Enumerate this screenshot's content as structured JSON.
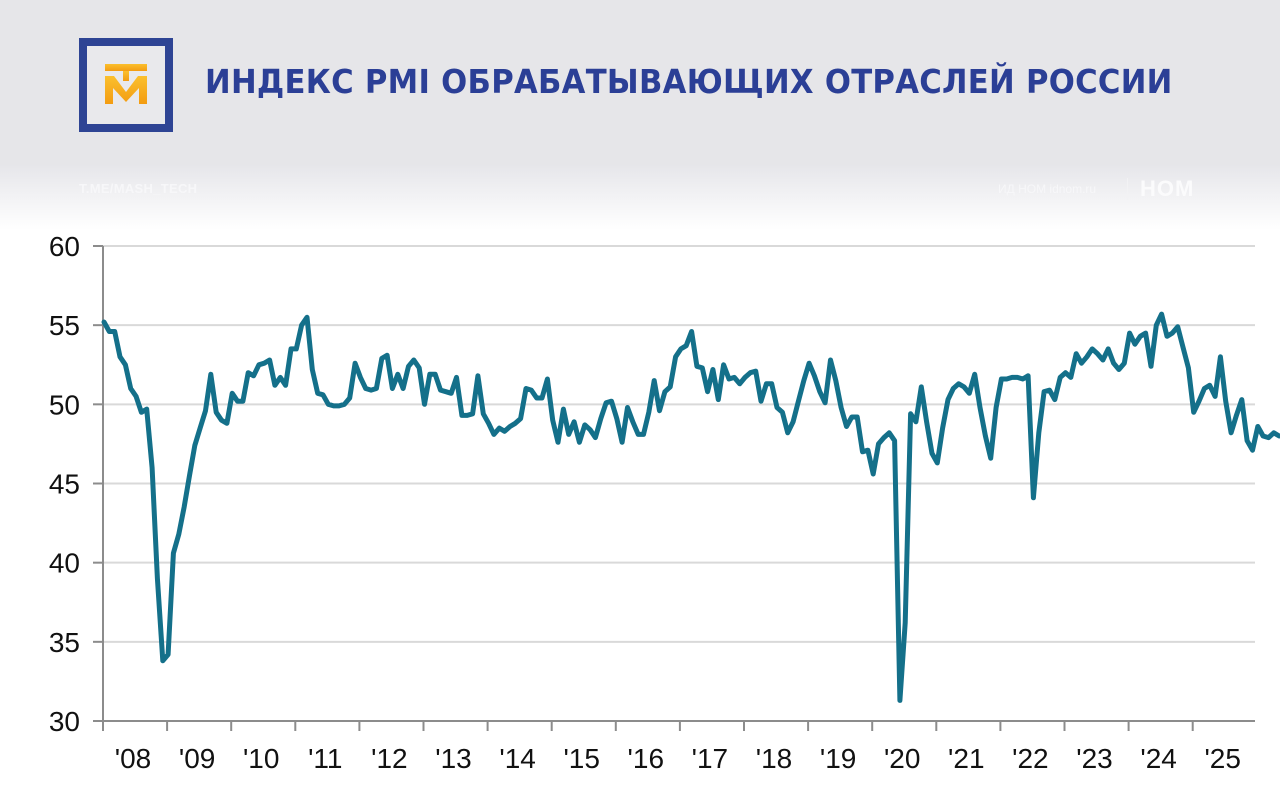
{
  "header": {
    "title": "ИНДЕКС PMI ОБРАБАТЫВАЮЩИХ ОТРАСЛЕЙ РОССИИ",
    "logo_icon": "tm-logo-icon",
    "colors": {
      "title": "#2b3f96",
      "logo_frame": "#2e4494",
      "logo_mark": "#f5a623"
    }
  },
  "watermarks": {
    "left": "T.ME/MASH_TECH",
    "right": "ИД НОМ idnom.ru",
    "brand": "НОМ"
  },
  "chart_data": {
    "type": "line",
    "title": "ИНДЕКС PMI ОБРАБАТЫВАЮЩИХ ОТРАСЛЕЙ РОССИИ",
    "xlabel": "",
    "ylabel": "",
    "ylim": [
      30,
      60
    ],
    "yticks": [
      30,
      35,
      40,
      45,
      50,
      55,
      60
    ],
    "xticks": [
      "'08",
      "'09",
      "'10",
      "'11",
      "'12",
      "'13",
      "'14",
      "'15",
      "'16",
      "'17",
      "'18",
      "'19",
      "'20",
      "'21",
      "'22",
      "'23",
      "'24",
      "'25"
    ],
    "grid": true,
    "line_color": "#14708a",
    "x_start": "2008-01",
    "frequency": "monthly",
    "series": [
      {
        "name": "PMI",
        "values": [
          55.2,
          54.6,
          54.6,
          53.0,
          52.5,
          51.0,
          50.5,
          49.5,
          49.7,
          46.0,
          39.0,
          33.8,
          34.2,
          40.6,
          41.8,
          43.5,
          45.5,
          47.4,
          48.5,
          49.6,
          51.9,
          49.5,
          49.0,
          48.8,
          50.7,
          50.2,
          50.2,
          52.0,
          51.8,
          52.5,
          52.6,
          52.8,
          51.2,
          51.7,
          51.2,
          53.5,
          53.5,
          55.0,
          55.5,
          52.2,
          50.7,
          50.6,
          50.0,
          49.9,
          49.9,
          50.0,
          50.4,
          52.6,
          51.7,
          51.0,
          50.9,
          51.0,
          52.9,
          53.1,
          51.0,
          51.9,
          51.0,
          52.4,
          52.8,
          52.3,
          50.0,
          51.9,
          51.9,
          50.9,
          50.8,
          50.7,
          51.7,
          49.3,
          49.3,
          49.4,
          51.8,
          49.4,
          48.8,
          48.1,
          48.5,
          48.3,
          48.6,
          48.8,
          49.1,
          51.0,
          50.9,
          50.4,
          50.4,
          51.6,
          49.0,
          47.6,
          49.7,
          48.1,
          48.9,
          47.6,
          48.7,
          48.4,
          47.9,
          49.1,
          50.1,
          50.2,
          49.1,
          47.6,
          49.8,
          48.9,
          48.1,
          48.1,
          49.5,
          51.5,
          49.6,
          50.8,
          51.1,
          53.0,
          53.5,
          53.7,
          54.6,
          52.4,
          52.3,
          50.8,
          52.2,
          50.3,
          52.5,
          51.6,
          51.7,
          51.3,
          51.7,
          52.0,
          52.1,
          50.2,
          51.3,
          51.3,
          49.8,
          49.5,
          48.2,
          48.9,
          50.2,
          51.5,
          52.6,
          51.8,
          50.8,
          50.1,
          52.8,
          51.5,
          49.8,
          48.6,
          49.2,
          49.2,
          47.0,
          47.1,
          45.6,
          47.5,
          47.9,
          48.2,
          47.7,
          31.3,
          36.2,
          49.4,
          48.9,
          51.1,
          48.9,
          46.9,
          46.3,
          48.5,
          50.3,
          51.0,
          51.3,
          51.1,
          50.7,
          51.9,
          49.8,
          48.0,
          46.6,
          49.8,
          51.6,
          51.6,
          51.7,
          51.7,
          51.6,
          51.8,
          44.1,
          48.2,
          50.8,
          50.9,
          50.3,
          51.7,
          52.0,
          51.7,
          53.2,
          52.6,
          53.0,
          53.5,
          53.2,
          52.8,
          53.5,
          52.6,
          52.2,
          52.6,
          54.5,
          53.8,
          54.3,
          54.5,
          52.4,
          55.0,
          55.7,
          54.3,
          54.5,
          54.9,
          53.6,
          52.3,
          49.5,
          50.2,
          51.0,
          51.2,
          50.5,
          53.0,
          50.2,
          48.2,
          49.3,
          50.3,
          47.7,
          47.1,
          48.6,
          48.0,
          47.9,
          48.2,
          48.0
        ]
      }
    ]
  }
}
